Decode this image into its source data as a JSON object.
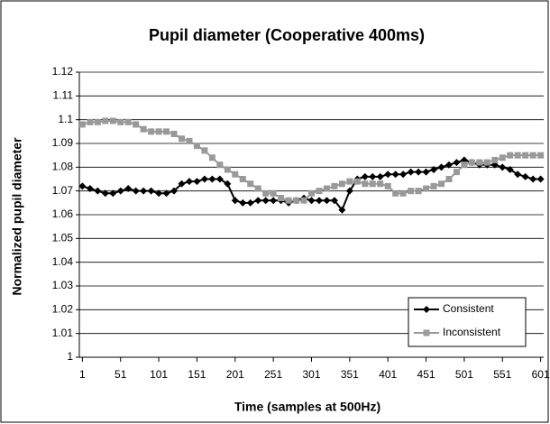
{
  "chart_data": {
    "type": "line",
    "title": "Pupil diameter (Cooperative 400ms)",
    "x_label": "Time (samples at 500Hz)",
    "y_label": "Normalized pupil diameter",
    "x": [
      1,
      11,
      21,
      31,
      41,
      51,
      61,
      71,
      81,
      91,
      101,
      111,
      121,
      131,
      141,
      151,
      161,
      171,
      181,
      191,
      201,
      211,
      221,
      231,
      241,
      251,
      261,
      271,
      281,
      291,
      301,
      311,
      321,
      331,
      341,
      351,
      361,
      371,
      381,
      391,
      401,
      411,
      421,
      431,
      441,
      451,
      461,
      471,
      481,
      491,
      501,
      511,
      521,
      531,
      541,
      551,
      561,
      571,
      581,
      591,
      601
    ],
    "series": [
      {
        "name": "Consistent",
        "color": "#000000",
        "marker": "diamond",
        "values": [
          1.072,
          1.071,
          1.07,
          1.069,
          1.069,
          1.07,
          1.071,
          1.07,
          1.07,
          1.07,
          1.069,
          1.069,
          1.07,
          1.073,
          1.074,
          1.074,
          1.075,
          1.075,
          1.075,
          1.073,
          1.066,
          1.065,
          1.065,
          1.066,
          1.066,
          1.066,
          1.066,
          1.065,
          1.066,
          1.067,
          1.066,
          1.066,
          1.066,
          1.066,
          1.062,
          1.07,
          1.075,
          1.076,
          1.076,
          1.076,
          1.077,
          1.077,
          1.077,
          1.078,
          1.078,
          1.078,
          1.079,
          1.08,
          1.081,
          1.082,
          1.083,
          1.082,
          1.081,
          1.081,
          1.081,
          1.08,
          1.079,
          1.077,
          1.076,
          1.075,
          1.075
        ]
      },
      {
        "name": "Inconsistent",
        "color": "#999999",
        "marker": "square",
        "values": [
          1.098,
          1.099,
          1.099,
          1.0995,
          1.0995,
          1.099,
          1.099,
          1.098,
          1.096,
          1.095,
          1.095,
          1.095,
          1.094,
          1.092,
          1.091,
          1.089,
          1.087,
          1.084,
          1.081,
          1.079,
          1.077,
          1.075,
          1.073,
          1.071,
          1.069,
          1.069,
          1.067,
          1.066,
          1.066,
          1.066,
          1.069,
          1.07,
          1.071,
          1.072,
          1.073,
          1.074,
          1.074,
          1.073,
          1.073,
          1.073,
          1.072,
          1.069,
          1.069,
          1.07,
          1.07,
          1.071,
          1.072,
          1.073,
          1.075,
          1.078,
          1.081,
          1.082,
          1.082,
          1.082,
          1.083,
          1.084,
          1.085,
          1.085,
          1.085,
          1.085,
          1.085
        ]
      }
    ],
    "xlim": [
      -3,
      605
    ],
    "xticks": [
      1,
      51,
      101,
      151,
      201,
      251,
      301,
      351,
      401,
      451,
      501,
      551,
      601
    ],
    "ylim": [
      1,
      1.12
    ],
    "yticks": [
      1,
      1.01,
      1.02,
      1.03,
      1.04,
      1.05,
      1.06,
      1.07,
      1.08,
      1.09,
      1.1,
      1.11,
      1.12
    ],
    "grid": true,
    "legend": "lower-right"
  }
}
